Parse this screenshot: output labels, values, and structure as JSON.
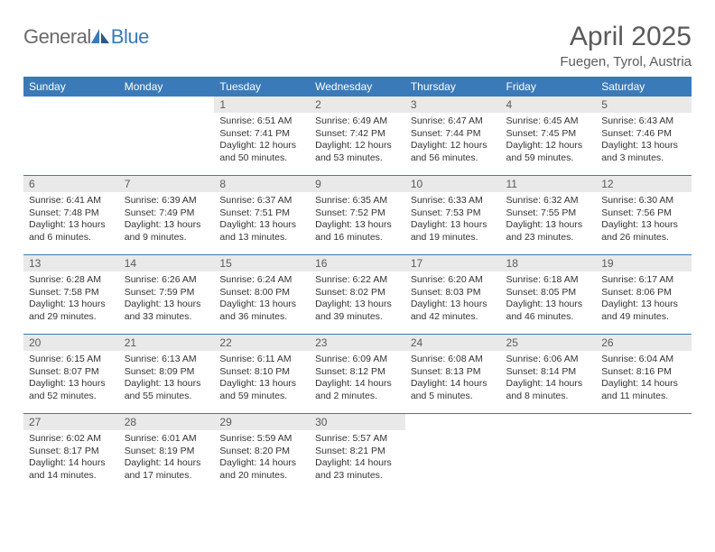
{
  "brand": {
    "part1": "General",
    "part2": "Blue"
  },
  "title": "April 2025",
  "location": "Fuegen, Tyrol, Austria",
  "colors": {
    "header_bg": "#3a7ab8",
    "header_text": "#ffffff",
    "daynum_bg": "#e9e9e9",
    "rule": "#3a7ab8",
    "text": "#333333",
    "title_text": "#5a5a5a"
  },
  "day_headers": [
    "Sunday",
    "Monday",
    "Tuesday",
    "Wednesday",
    "Thursday",
    "Friday",
    "Saturday"
  ],
  "weeks": [
    [
      {
        "n": "",
        "sunrise": "",
        "sunset": "",
        "daylight": ""
      },
      {
        "n": "",
        "sunrise": "",
        "sunset": "",
        "daylight": ""
      },
      {
        "n": "1",
        "sunrise": "Sunrise: 6:51 AM",
        "sunset": "Sunset: 7:41 PM",
        "daylight": "Daylight: 12 hours and 50 minutes."
      },
      {
        "n": "2",
        "sunrise": "Sunrise: 6:49 AM",
        "sunset": "Sunset: 7:42 PM",
        "daylight": "Daylight: 12 hours and 53 minutes."
      },
      {
        "n": "3",
        "sunrise": "Sunrise: 6:47 AM",
        "sunset": "Sunset: 7:44 PM",
        "daylight": "Daylight: 12 hours and 56 minutes."
      },
      {
        "n": "4",
        "sunrise": "Sunrise: 6:45 AM",
        "sunset": "Sunset: 7:45 PM",
        "daylight": "Daylight: 12 hours and 59 minutes."
      },
      {
        "n": "5",
        "sunrise": "Sunrise: 6:43 AM",
        "sunset": "Sunset: 7:46 PM",
        "daylight": "Daylight: 13 hours and 3 minutes."
      }
    ],
    [
      {
        "n": "6",
        "sunrise": "Sunrise: 6:41 AM",
        "sunset": "Sunset: 7:48 PM",
        "daylight": "Daylight: 13 hours and 6 minutes."
      },
      {
        "n": "7",
        "sunrise": "Sunrise: 6:39 AM",
        "sunset": "Sunset: 7:49 PM",
        "daylight": "Daylight: 13 hours and 9 minutes."
      },
      {
        "n": "8",
        "sunrise": "Sunrise: 6:37 AM",
        "sunset": "Sunset: 7:51 PM",
        "daylight": "Daylight: 13 hours and 13 minutes."
      },
      {
        "n": "9",
        "sunrise": "Sunrise: 6:35 AM",
        "sunset": "Sunset: 7:52 PM",
        "daylight": "Daylight: 13 hours and 16 minutes."
      },
      {
        "n": "10",
        "sunrise": "Sunrise: 6:33 AM",
        "sunset": "Sunset: 7:53 PM",
        "daylight": "Daylight: 13 hours and 19 minutes."
      },
      {
        "n": "11",
        "sunrise": "Sunrise: 6:32 AM",
        "sunset": "Sunset: 7:55 PM",
        "daylight": "Daylight: 13 hours and 23 minutes."
      },
      {
        "n": "12",
        "sunrise": "Sunrise: 6:30 AM",
        "sunset": "Sunset: 7:56 PM",
        "daylight": "Daylight: 13 hours and 26 minutes."
      }
    ],
    [
      {
        "n": "13",
        "sunrise": "Sunrise: 6:28 AM",
        "sunset": "Sunset: 7:58 PM",
        "daylight": "Daylight: 13 hours and 29 minutes."
      },
      {
        "n": "14",
        "sunrise": "Sunrise: 6:26 AM",
        "sunset": "Sunset: 7:59 PM",
        "daylight": "Daylight: 13 hours and 33 minutes."
      },
      {
        "n": "15",
        "sunrise": "Sunrise: 6:24 AM",
        "sunset": "Sunset: 8:00 PM",
        "daylight": "Daylight: 13 hours and 36 minutes."
      },
      {
        "n": "16",
        "sunrise": "Sunrise: 6:22 AM",
        "sunset": "Sunset: 8:02 PM",
        "daylight": "Daylight: 13 hours and 39 minutes."
      },
      {
        "n": "17",
        "sunrise": "Sunrise: 6:20 AM",
        "sunset": "Sunset: 8:03 PM",
        "daylight": "Daylight: 13 hours and 42 minutes."
      },
      {
        "n": "18",
        "sunrise": "Sunrise: 6:18 AM",
        "sunset": "Sunset: 8:05 PM",
        "daylight": "Daylight: 13 hours and 46 minutes."
      },
      {
        "n": "19",
        "sunrise": "Sunrise: 6:17 AM",
        "sunset": "Sunset: 8:06 PM",
        "daylight": "Daylight: 13 hours and 49 minutes."
      }
    ],
    [
      {
        "n": "20",
        "sunrise": "Sunrise: 6:15 AM",
        "sunset": "Sunset: 8:07 PM",
        "daylight": "Daylight: 13 hours and 52 minutes."
      },
      {
        "n": "21",
        "sunrise": "Sunrise: 6:13 AM",
        "sunset": "Sunset: 8:09 PM",
        "daylight": "Daylight: 13 hours and 55 minutes."
      },
      {
        "n": "22",
        "sunrise": "Sunrise: 6:11 AM",
        "sunset": "Sunset: 8:10 PM",
        "daylight": "Daylight: 13 hours and 59 minutes."
      },
      {
        "n": "23",
        "sunrise": "Sunrise: 6:09 AM",
        "sunset": "Sunset: 8:12 PM",
        "daylight": "Daylight: 14 hours and 2 minutes."
      },
      {
        "n": "24",
        "sunrise": "Sunrise: 6:08 AM",
        "sunset": "Sunset: 8:13 PM",
        "daylight": "Daylight: 14 hours and 5 minutes."
      },
      {
        "n": "25",
        "sunrise": "Sunrise: 6:06 AM",
        "sunset": "Sunset: 8:14 PM",
        "daylight": "Daylight: 14 hours and 8 minutes."
      },
      {
        "n": "26",
        "sunrise": "Sunrise: 6:04 AM",
        "sunset": "Sunset: 8:16 PM",
        "daylight": "Daylight: 14 hours and 11 minutes."
      }
    ],
    [
      {
        "n": "27",
        "sunrise": "Sunrise: 6:02 AM",
        "sunset": "Sunset: 8:17 PM",
        "daylight": "Daylight: 14 hours and 14 minutes."
      },
      {
        "n": "28",
        "sunrise": "Sunrise: 6:01 AM",
        "sunset": "Sunset: 8:19 PM",
        "daylight": "Daylight: 14 hours and 17 minutes."
      },
      {
        "n": "29",
        "sunrise": "Sunrise: 5:59 AM",
        "sunset": "Sunset: 8:20 PM",
        "daylight": "Daylight: 14 hours and 20 minutes."
      },
      {
        "n": "30",
        "sunrise": "Sunrise: 5:57 AM",
        "sunset": "Sunset: 8:21 PM",
        "daylight": "Daylight: 14 hours and 23 minutes."
      },
      {
        "n": "",
        "sunrise": "",
        "sunset": "",
        "daylight": ""
      },
      {
        "n": "",
        "sunrise": "",
        "sunset": "",
        "daylight": ""
      },
      {
        "n": "",
        "sunrise": "",
        "sunset": "",
        "daylight": ""
      }
    ]
  ]
}
